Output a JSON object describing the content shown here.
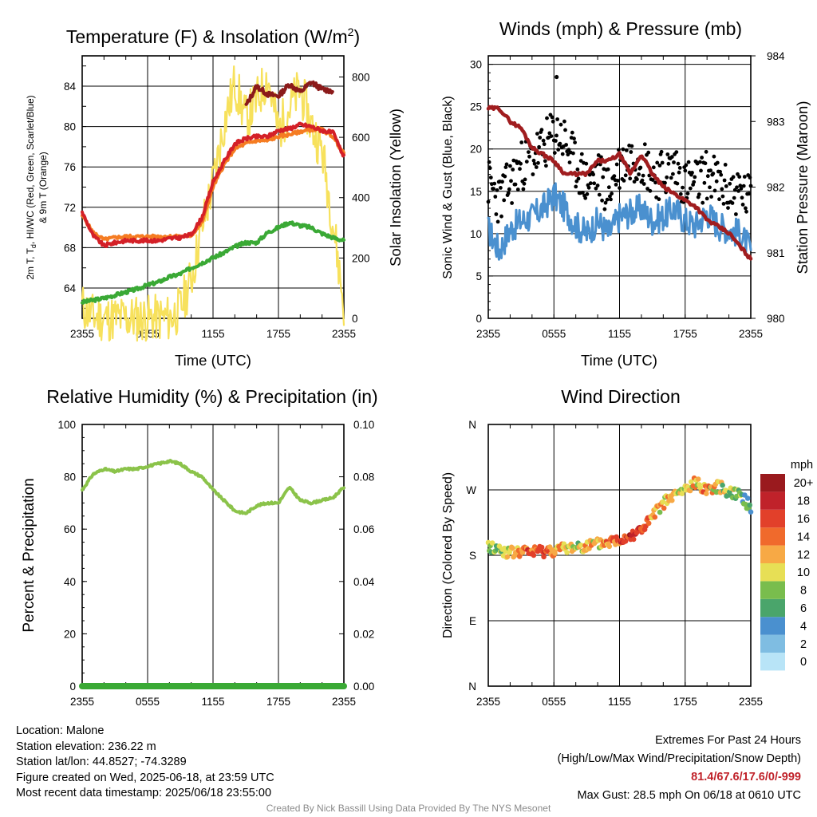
{
  "titles": {
    "temp": "Temperature (F) & Insolation (W/m",
    "temp_sup": "2",
    "temp_close": ")",
    "winds": "Winds (mph) & Pressure (mb)",
    "rh": "Relative Humidity (%) & Precipitation (in)",
    "dir": "Wind Direction"
  },
  "axis_labels": {
    "time": "Time (UTC)",
    "temp_y_line1": "2m T, T",
    "temp_y_sub": "d",
    "temp_y_line1_rest": ", HI/WC (Red, Green, Scarlet/Blue)",
    "temp_y_line2": "& 9m T (Orange)",
    "insolation": "Solar Insolation (Yellow)",
    "wind_y": "Sonic Wind & Gust (Blue, Black)",
    "pressure": "Station Pressure (Maroon)",
    "rh_y": "Percent & Precipitation",
    "dir_y": "Direction (Colored By Speed)",
    "mph": "mph"
  },
  "time_ticks": [
    "2355",
    "0555",
    "1155",
    "1755",
    "2355"
  ],
  "colors": {
    "temp": "#d42027",
    "dewpoint": "#3aa935",
    "hiwc": "#8b1a1a",
    "temp9m": "#f57c22",
    "insolation": "#f7e15c",
    "wind": "#4a90cf",
    "gust": "#000000",
    "pressure": "#a01d1f",
    "rh": "#8bc34a",
    "precip": "#3aa935"
  },
  "chart_data": [
    {
      "type": "line",
      "title": "Temperature (F) & Insolation (W/m2)",
      "xlabel": "Time (UTC)",
      "ylabel": "2m T, Td, HI/WC (Red, Green, Scarlet/Blue) & 9m T (Orange)",
      "y2label": "Solar Insolation (Yellow)",
      "ylim": [
        61,
        87
      ],
      "y2lim": [
        0,
        870
      ],
      "yticks": [
        64,
        68,
        72,
        76,
        80,
        84
      ],
      "y2ticks": [
        0,
        200,
        400,
        600,
        800
      ],
      "x_hours": [
        0,
        1,
        2,
        3,
        4,
        5,
        6,
        7,
        8,
        9,
        10,
        11,
        12,
        13,
        14,
        15,
        16,
        17,
        18,
        19,
        20,
        21,
        22,
        23,
        24
      ],
      "series": [
        {
          "key": "temp",
          "values": [
            71.5,
            69.2,
            68.2,
            68.5,
            68.7,
            68.7,
            68.7,
            68.7,
            68.9,
            69.0,
            69.3,
            71.0,
            74.5,
            76.5,
            78.3,
            78.8,
            79.0,
            79.0,
            79.6,
            79.8,
            80.2,
            80.0,
            79.6,
            79.4,
            77.0
          ]
        },
        {
          "key": "temp9m",
          "values": [
            71.2,
            69.5,
            68.8,
            69.0,
            69.1,
            69.1,
            69.1,
            69.1,
            69.1,
            69.1,
            69.2,
            70.5,
            74.0,
            76.2,
            77.8,
            78.3,
            78.6,
            78.6,
            79.0,
            79.2,
            79.5,
            79.7,
            79.7,
            79.0,
            77.3
          ]
        },
        {
          "key": "hiwc",
          "values": [
            null,
            null,
            null,
            null,
            null,
            null,
            null,
            null,
            null,
            null,
            null,
            null,
            null,
            null,
            null,
            82.0,
            84.0,
            83.2,
            83.0,
            84.2,
            83.4,
            84.4,
            83.7,
            83.5,
            null
          ]
        },
        {
          "key": "dewpoint",
          "values": [
            62.6,
            62.8,
            63.0,
            63.3,
            63.6,
            63.9,
            64.3,
            64.6,
            65.1,
            65.4,
            66.0,
            66.5,
            67.0,
            67.5,
            68.1,
            68.5,
            68.5,
            69.5,
            70.0,
            70.5,
            70.2,
            70.0,
            69.4,
            69.0,
            68.7
          ]
        },
        {
          "key": "insolation",
          "values": [
            40,
            5,
            0,
            0,
            0,
            0,
            0,
            0,
            0,
            30,
            130,
            300,
            450,
            640,
            780,
            660,
            720,
            800,
            620,
            700,
            760,
            640,
            560,
            320,
            40
          ]
        }
      ]
    },
    {
      "type": "line",
      "title": "Winds (mph) & Pressure (mb)",
      "xlabel": "Time (UTC)",
      "ylabel": "Sonic Wind & Gust (Blue, Black)",
      "y2label": "Station Pressure (Maroon)",
      "ylim": [
        0,
        31
      ],
      "y2lim": [
        980,
        984
      ],
      "yticks": [
        0,
        5,
        10,
        15,
        20,
        25,
        30
      ],
      "y2ticks": [
        980,
        981,
        982,
        983,
        984
      ],
      "x_hours": [
        0,
        1,
        2,
        3,
        4,
        5,
        6,
        7,
        8,
        9,
        10,
        11,
        12,
        13,
        14,
        15,
        16,
        17,
        18,
        19,
        20,
        21,
        22,
        23,
        24
      ],
      "series": [
        {
          "key": "wind",
          "values": [
            10.5,
            8.0,
            10.5,
            11.5,
            12.0,
            13.0,
            14.5,
            13.0,
            11.0,
            10.0,
            11.5,
            10.0,
            12.0,
            12.5,
            13.0,
            11.5,
            12.0,
            13.0,
            11.5,
            11.0,
            12.5,
            11.0,
            10.5,
            10.0,
            8.0
          ]
        },
        {
          "key": "pressure",
          "values": [
            983.2,
            983.2,
            983.0,
            982.9,
            982.6,
            982.5,
            982.4,
            982.2,
            982.2,
            982.2,
            982.4,
            982.4,
            982.5,
            982.2,
            982.5,
            982.2,
            982.0,
            981.9,
            981.8,
            981.7,
            981.5,
            981.4,
            981.3,
            981.1,
            980.9
          ]
        },
        {
          "key": "gust",
          "values": [
            16,
            14,
            16,
            18,
            19,
            20,
            22,
            21,
            18,
            16,
            17,
            15,
            18,
            19,
            19,
            17,
            17,
            18,
            16,
            16,
            17,
            16,
            15,
            15,
            14
          ],
          "note_max": 28.5
        }
      ]
    },
    {
      "type": "line",
      "title": "Relative Humidity (%) & Precipitation (in)",
      "xlabel": "",
      "ylabel": "Percent & Precipitation",
      "ylim": [
        0,
        100
      ],
      "y2lim": [
        0,
        0.1
      ],
      "yticks": [
        0,
        20,
        40,
        60,
        80,
        100
      ],
      "y2ticks": [
        "0.00",
        "0.02",
        "0.04",
        "0.06",
        "0.08",
        "0.10"
      ],
      "x_hours": [
        0,
        1,
        2,
        3,
        4,
        5,
        6,
        7,
        8,
        9,
        10,
        11,
        12,
        13,
        14,
        15,
        16,
        17,
        18,
        19,
        20,
        21,
        22,
        23,
        24
      ],
      "series": [
        {
          "key": "rh",
          "values": [
            75,
            81,
            83,
            82,
            83,
            83,
            84,
            85,
            86,
            85,
            82,
            80,
            75,
            71,
            67,
            66,
            69,
            70,
            70,
            76,
            71,
            70,
            71,
            72,
            76
          ]
        },
        {
          "key": "precip",
          "values": [
            0,
            0,
            0,
            0,
            0,
            0,
            0,
            0,
            0,
            0,
            0,
            0,
            0,
            0,
            0,
            0,
            0,
            0,
            0,
            0,
            0,
            0,
            0,
            0,
            0
          ]
        }
      ]
    },
    {
      "type": "scatter",
      "title": "Wind Direction",
      "ylabel": "Direction (Colored By Speed)",
      "yticks": [
        "N",
        "E",
        "S",
        "W",
        "N"
      ],
      "ylim": [
        0,
        360
      ],
      "x_hours": [
        0,
        1,
        2,
        3,
        4,
        5,
        6,
        7,
        8,
        9,
        10,
        11,
        12,
        13,
        14,
        15,
        16,
        17,
        18,
        19,
        20,
        21,
        22,
        23,
        24
      ],
      "direction_deg": [
        192,
        188,
        183,
        185,
        185,
        186,
        187,
        189,
        192,
        193,
        195,
        198,
        202,
        208,
        215,
        232,
        252,
        262,
        270,
        280,
        271,
        275,
        268,
        265,
        245
      ],
      "speed_mph": [
        8,
        9,
        12,
        14,
        16,
        17,
        14,
        12,
        10,
        12,
        11,
        14,
        16,
        18,
        17,
        14,
        12,
        11,
        10,
        12,
        14,
        10,
        10,
        9,
        6
      ],
      "colorbar": {
        "labels": [
          "0",
          "2",
          "4",
          "6",
          "8",
          "10",
          "12",
          "14",
          "16",
          "18",
          "20+"
        ],
        "colors": [
          "#b8e4f7",
          "#7fbde2",
          "#4a90cf",
          "#4aa56b",
          "#79bd4d",
          "#e7df55",
          "#f7a945",
          "#f06a2c",
          "#e2402a",
          "#c0222a",
          "#9a1a1e"
        ]
      }
    }
  ],
  "info": {
    "location": "Location: Malone",
    "elevation": "Station elevation: 236.22 m",
    "latlon": "Station lat/lon: 44.8527; -74.3289",
    "created": "Figure created on Wed, 2025-06-18, at 23:59 UTC",
    "recent": "Most recent data timestamp: 2025/06/18 23:55:00",
    "extremes_title": "Extremes For Past 24 Hours",
    "extremes_legend": "(High/Low/Max Wind/Precipitation/Snow Depth)",
    "extremes_values": "81.4/67.6/17.6/0/-999",
    "max_gust": "Max Gust: 28.5 mph On 06/18 at 0610 UTC"
  },
  "footer": "Created By Nick Bassill Using Data Provided By The NYS Mesonet"
}
